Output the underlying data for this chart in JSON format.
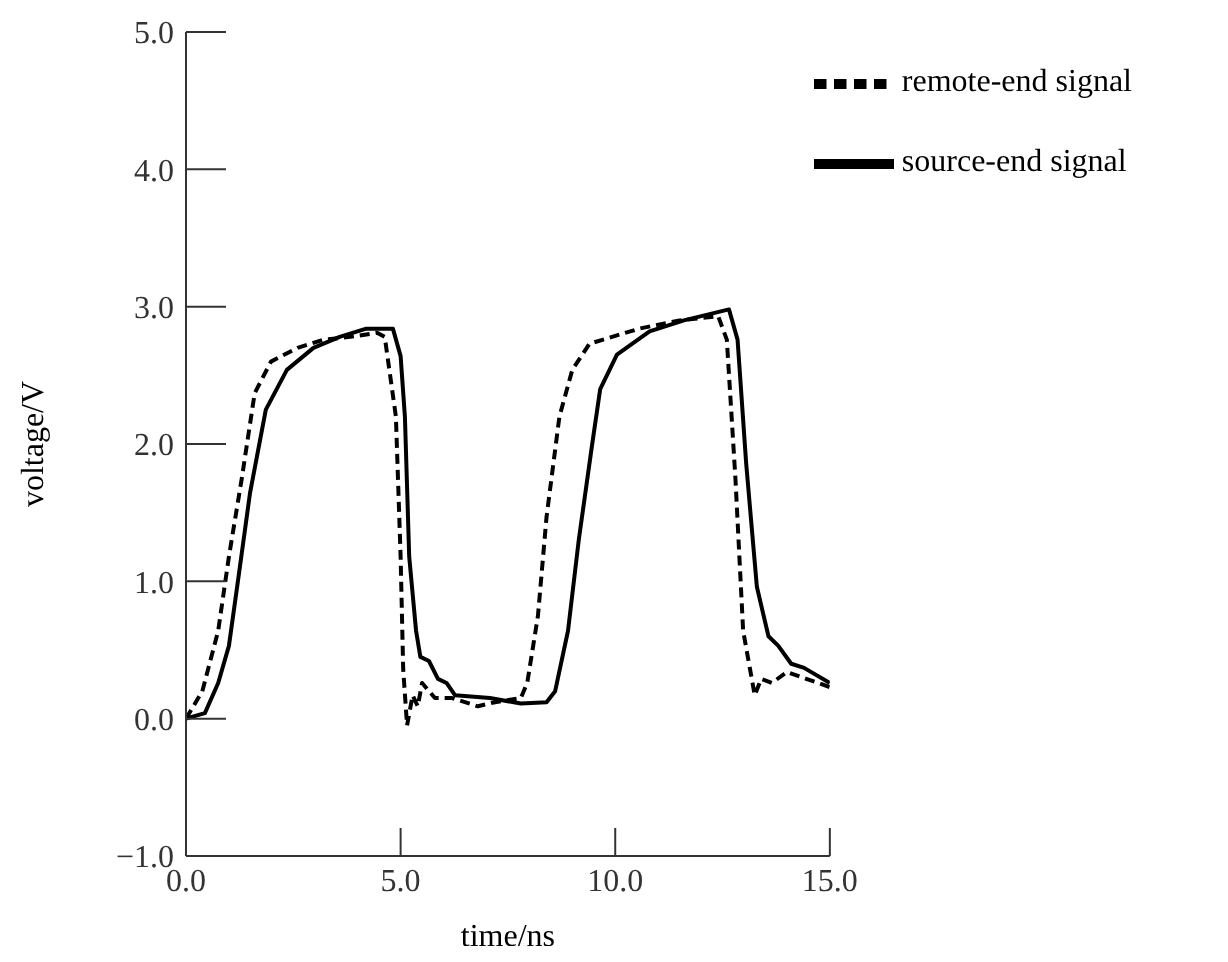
{
  "chart_data": {
    "type": "line",
    "xlabel": "time/ns",
    "ylabel": "voltage/V",
    "xlim": [
      0,
      15
    ],
    "xticks": [
      {
        "value": 0,
        "label": "0.0"
      },
      {
        "value": 5,
        "label": "5.0"
      },
      {
        "value": 10,
        "label": "10.0"
      },
      {
        "value": 15,
        "label": "15.0"
      }
    ],
    "ylim": [
      -1,
      5
    ],
    "yticks": [
      {
        "value": -1,
        "label": "−1.0"
      },
      {
        "value": 0,
        "label": "0.0"
      },
      {
        "value": 1,
        "label": "1.0"
      },
      {
        "value": 2,
        "label": "2.0"
      },
      {
        "value": 3,
        "label": "3.0"
      },
      {
        "value": 4,
        "label": "4.0"
      },
      {
        "value": 5,
        "label": "5.0"
      }
    ],
    "legend": "top right",
    "marker": "none",
    "series": [
      {
        "name": "remote-end signal",
        "color": "#000000",
        "line_style": "dashed",
        "x": [
          0,
          0.38,
          0.75,
          1.0,
          1.3,
          1.6,
          1.98,
          2.6,
          3.2,
          3.83,
          4.45,
          4.63,
          4.89,
          5.0,
          5.06,
          5.15,
          5.28,
          5.4,
          5.5,
          5.8,
          6.2,
          6.8,
          7.2,
          7.8,
          7.95,
          8.2,
          8.4,
          8.7,
          9.0,
          9.4,
          10.56,
          11.5,
          12.4,
          12.6,
          12.8,
          12.98,
          13.25,
          13.4,
          13.65,
          14.0,
          14.45,
          15
        ],
        "values": [
          0,
          0.2,
          0.64,
          1.18,
          1.75,
          2.37,
          2.6,
          2.7,
          2.76,
          2.78,
          2.81,
          2.78,
          2.2,
          1.18,
          0.36,
          -0.05,
          0.17,
          0.09,
          0.26,
          0.15,
          0.15,
          0.09,
          0.12,
          0.15,
          0.26,
          0.75,
          1.47,
          2.2,
          2.54,
          2.73,
          2.84,
          2.9,
          2.93,
          2.76,
          1.75,
          0.64,
          0.17,
          0.29,
          0.26,
          0.34,
          0.29,
          0.23
        ]
      },
      {
        "name": "source-end signal",
        "color": "#000000",
        "line_style": "solid",
        "x": [
          0,
          0.44,
          0.75,
          1.0,
          1.24,
          1.49,
          1.86,
          2.35,
          2.97,
          3.58,
          4.2,
          4.82,
          5.0,
          5.1,
          5.2,
          5.36,
          5.46,
          5.66,
          5.87,
          6.07,
          6.27,
          7.08,
          7.8,
          8.4,
          8.6,
          8.9,
          9.15,
          9.45,
          9.65,
          10.04,
          10.8,
          11.6,
          12.65,
          12.85,
          13.05,
          13.3,
          13.57,
          13.8,
          14.1,
          14.4,
          15
        ],
        "values": [
          0,
          0.04,
          0.26,
          0.53,
          1.07,
          1.64,
          2.25,
          2.54,
          2.7,
          2.78,
          2.84,
          2.84,
          2.64,
          2.2,
          1.18,
          0.64,
          0.45,
          0.42,
          0.29,
          0.26,
          0.17,
          0.15,
          0.11,
          0.12,
          0.2,
          0.64,
          1.3,
          1.97,
          2.4,
          2.65,
          2.82,
          2.9,
          2.98,
          2.76,
          1.86,
          0.96,
          0.6,
          0.53,
          0.4,
          0.37,
          0.26
        ]
      }
    ]
  }
}
